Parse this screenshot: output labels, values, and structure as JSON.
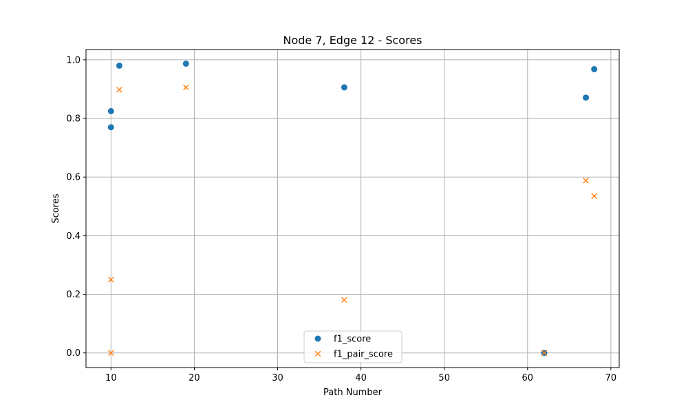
{
  "chart_data": {
    "type": "scatter",
    "title": "Node 7, Edge 12 - Scores",
    "xlabel": "Path Number",
    "ylabel": "Scores",
    "xlim": [
      7,
      71
    ],
    "ylim": [
      -0.05,
      1.035
    ],
    "xticks": [
      10,
      20,
      30,
      40,
      50,
      60,
      70
    ],
    "yticks": [
      0.0,
      0.2,
      0.4,
      0.6,
      0.8,
      1.0
    ],
    "grid": true,
    "legend_position": "bottom-center",
    "series": [
      {
        "name": "f1_score",
        "marker": "circle",
        "color": "#1f77b4",
        "points": [
          [
            10,
            0.825
          ],
          [
            10,
            0.77
          ],
          [
            11,
            0.98
          ],
          [
            19,
            0.987
          ],
          [
            38,
            0.906
          ],
          [
            62,
            0.0
          ],
          [
            67,
            0.871
          ],
          [
            68,
            0.968
          ]
        ]
      },
      {
        "name": "f1_pair_score",
        "marker": "x",
        "color": "#ff7f0e",
        "points": [
          [
            10,
            0.25
          ],
          [
            10,
            0.0
          ],
          [
            11,
            0.898
          ],
          [
            19,
            0.906
          ],
          [
            38,
            0.181
          ],
          [
            62,
            0.0
          ],
          [
            67,
            0.588
          ],
          [
            68,
            0.535
          ]
        ]
      }
    ]
  }
}
